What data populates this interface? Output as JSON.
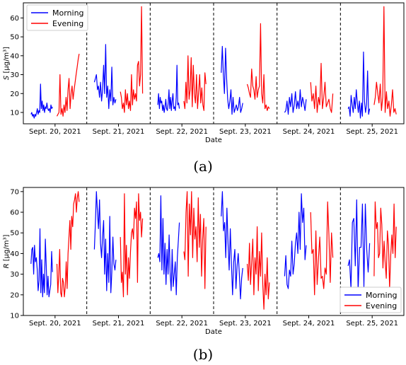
{
  "colors": {
    "morning": "#0000ff",
    "evening": "#ff0000"
  },
  "chart_data": [
    {
      "type": "line",
      "panel_caption": "(a)",
      "xlabel": "Date",
      "ylabel_main": "S",
      "ylabel_unit": "[μg/m³]",
      "ylim": [
        4,
        68
      ],
      "yticks": [
        10,
        20,
        30,
        40,
        50,
        60
      ],
      "legend": {
        "position": "top-left",
        "entries": [
          "Morning",
          "Evening"
        ]
      },
      "days": [
        {
          "label": "Sept. 20, 2021",
          "morning": [
            9,
            10,
            8,
            9,
            7,
            9,
            8,
            10,
            12,
            9,
            11,
            10,
            25,
            12,
            16,
            11,
            14,
            10,
            13,
            12,
            15,
            12,
            11,
            12,
            10,
            14,
            12,
            13
          ],
          "evening": [
            8,
            9,
            10,
            30,
            9,
            12,
            8,
            14,
            10,
            18,
            11,
            22,
            28,
            12,
            20,
            24,
            17,
            22,
            26,
            30,
            34,
            38,
            41
          ]
        },
        {
          "label": "Sept. 21, 2021",
          "morning": [
            26,
            28,
            30,
            22,
            24,
            18,
            26,
            16,
            22,
            35,
            20,
            46,
            18,
            24,
            12,
            22,
            16,
            34,
            14,
            18,
            15,
            17
          ],
          "evening": [
            21,
            18,
            12,
            15,
            10,
            22,
            14,
            20,
            12,
            16,
            11,
            30,
            14,
            22,
            17,
            20,
            16,
            35,
            37,
            24,
            30,
            66,
            20
          ]
        },
        {
          "label": "Sept. 22, 2021",
          "morning": [
            14,
            20,
            12,
            18,
            15,
            16,
            11,
            14,
            10,
            13,
            17,
            12,
            11,
            15,
            22,
            12,
            18,
            11,
            16,
            20,
            12,
            13,
            11,
            18,
            35,
            14,
            15,
            12
          ],
          "evening": [
            16,
            12,
            26,
            15,
            40,
            17,
            22,
            39,
            13,
            35,
            20,
            15,
            30,
            12,
            21,
            30,
            15,
            23,
            14,
            11,
            31,
            25
          ]
        },
        {
          "label": "Sept. 23, 2021",
          "morning": [
            31,
            45,
            30,
            20,
            44,
            28,
            17,
            12,
            16,
            22,
            9,
            18,
            10,
            12,
            14,
            11,
            13,
            18,
            10,
            12,
            15
          ],
          "evening": [
            25,
            23,
            20,
            18,
            33,
            24,
            22,
            17,
            29,
            18,
            22,
            24,
            57,
            20,
            15,
            30,
            12,
            14,
            11,
            13,
            12
          ]
        },
        {
          "label": "Sept. 24, 2021",
          "morning": [
            10,
            11,
            16,
            9,
            18,
            13,
            20,
            10,
            14,
            21,
            12,
            16,
            12,
            22,
            13,
            18,
            15,
            11,
            17
          ],
          "evening": [
            26,
            16,
            20,
            12,
            24,
            10,
            18,
            14,
            36,
            12,
            18,
            26,
            13,
            15,
            17,
            12,
            10,
            20
          ]
        },
        {
          "label": "Sept. 25, 2021",
          "morning": [
            12,
            13,
            8,
            19,
            14,
            10,
            18,
            12,
            22,
            15,
            10,
            16,
            7,
            15,
            8,
            42,
            16,
            10,
            14,
            32,
            9,
            12
          ],
          "evening": [
            14,
            18,
            26,
            20,
            15,
            25,
            11,
            18,
            66,
            10,
            21,
            12,
            16,
            8,
            14,
            22,
            10,
            12,
            9
          ]
        }
      ]
    },
    {
      "type": "line",
      "panel_caption": "(b)",
      "xlabel": "Date",
      "ylabel_main": "R",
      "ylabel_unit": "[μg/m³]",
      "ylim": [
        10,
        72
      ],
      "yticks": [
        10,
        20,
        30,
        40,
        50,
        60,
        70
      ],
      "legend": {
        "position": "bottom-right",
        "entries": [
          "Morning",
          "Evening"
        ]
      },
      "days": [
        {
          "label": "Sept. 20, 2021",
          "morning": [
            35,
            42,
            43,
            30,
            44,
            36,
            38,
            32,
            22,
            27,
            52,
            21,
            37,
            19,
            30,
            21,
            47,
            34,
            20,
            29,
            19,
            22,
            25,
            41,
            31
          ],
          "evening": [
            35,
            21,
            30,
            42,
            21,
            19,
            28,
            26,
            19,
            24,
            36,
            23,
            40,
            48,
            56,
            42,
            58,
            53,
            64,
            66,
            69,
            60,
            67,
            70,
            65
          ]
        },
        {
          "label": "Sept. 21, 2021",
          "morning": [
            42,
            55,
            70,
            60,
            52,
            66,
            45,
            38,
            48,
            56,
            30,
            47,
            22,
            40,
            26,
            58,
            21,
            31,
            48,
            35,
            32,
            37
          ],
          "evening": [
            48,
            26,
            31,
            19,
            69,
            30,
            44,
            20,
            38,
            28,
            41,
            50,
            52,
            47,
            62,
            57,
            65,
            26,
            69,
            56,
            60,
            48,
            57
          ]
        },
        {
          "label": "Sept. 22, 2021",
          "morning": [
            38,
            40,
            36,
            68,
            32,
            57,
            30,
            45,
            25,
            42,
            30,
            49,
            31,
            22,
            42,
            24,
            30,
            36,
            20,
            38,
            46,
            55
          ],
          "evening": [
            41,
            37,
            60,
            70,
            29,
            64,
            49,
            70,
            38,
            62,
            47,
            53,
            36,
            67,
            43,
            59,
            29,
            47,
            57,
            23,
            53
          ]
        },
        {
          "label": "Sept. 23, 2021",
          "morning": [
            58,
            70,
            51,
            55,
            38,
            62,
            45,
            32,
            52,
            35,
            20,
            36,
            42,
            23,
            34,
            40,
            30,
            18,
            28,
            33
          ],
          "evening": [
            35,
            27,
            45,
            25,
            36,
            47,
            20,
            38,
            30,
            53,
            22,
            41,
            29,
            50,
            25,
            13,
            30,
            20,
            38,
            18,
            26
          ]
        },
        {
          "label": "Sept. 24, 2021",
          "morning": [
            29,
            39,
            25,
            23,
            32,
            29,
            46,
            30,
            35,
            45,
            50,
            40,
            60,
            42,
            69,
            55,
            62,
            37,
            44
          ],
          "evening": [
            60,
            40,
            42,
            20,
            51,
            25,
            38,
            48,
            28,
            29,
            23,
            33,
            30,
            65,
            49,
            26,
            50,
            38
          ]
        },
        {
          "label": "Sept. 25, 2021",
          "morning": [
            34,
            37,
            23,
            55,
            57,
            34,
            66,
            22,
            43,
            43,
            64,
            24,
            64,
            42,
            31,
            45
          ],
          "evening": [
            29,
            65,
            52,
            55,
            38,
            40,
            62,
            54,
            33,
            46,
            36,
            28,
            51,
            44,
            23,
            39,
            49,
            40,
            64,
            38,
            53
          ]
        }
      ]
    }
  ]
}
